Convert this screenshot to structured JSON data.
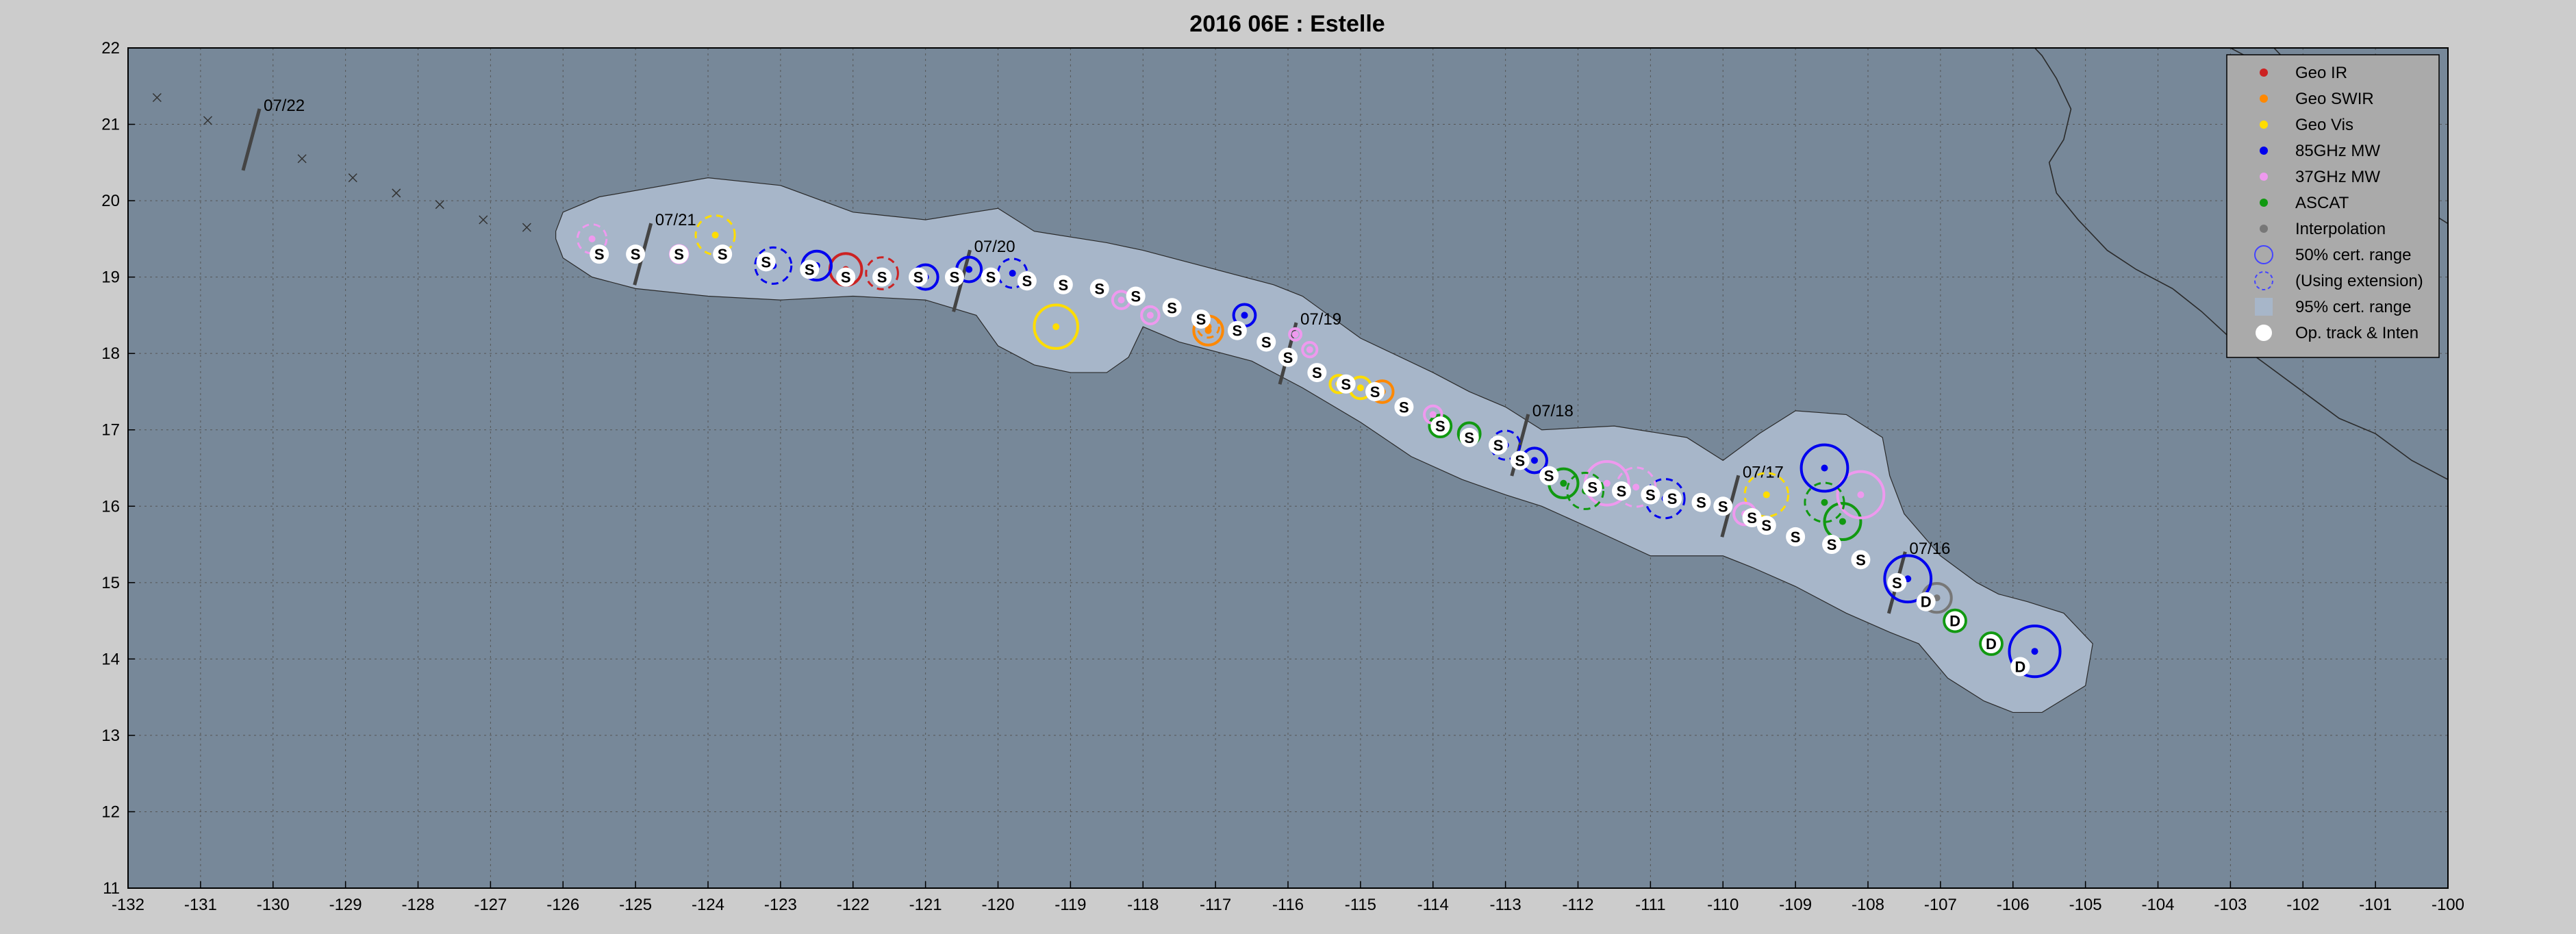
{
  "chart_data": {
    "type": "scatter",
    "title": "2016  06E :  Estelle",
    "xlim": [
      -132,
      -100
    ],
    "ylim": [
      11,
      22
    ],
    "xticks": [
      -132,
      -131,
      -130,
      -129,
      -128,
      -127,
      -126,
      -125,
      -124,
      -123,
      -122,
      -121,
      -120,
      -119,
      -118,
      -117,
      -116,
      -115,
      -114,
      -113,
      -112,
      -111,
      -110,
      -109,
      -108,
      -107,
      -106,
      -105,
      -104,
      -103,
      -102,
      -101,
      -100
    ],
    "yticks": [
      11,
      12,
      13,
      14,
      15,
      16,
      17,
      18,
      19,
      20,
      21,
      22
    ],
    "grid": true,
    "legend_position": "top-right",
    "colors": {
      "plot_bg": "#778899",
      "envelope": "#a7b6c9",
      "figure_bg": "#cccccc",
      "land_line": "#2a2a2a",
      "grid": "#555555"
    },
    "legend": [
      {
        "label": "Geo IR",
        "symbol": "dot",
        "color": "#cc2222"
      },
      {
        "label": "Geo SWIR",
        "symbol": "dot",
        "color": "#ff8800"
      },
      {
        "label": "Geo Vis",
        "symbol": "dot",
        "color": "#ffdd00"
      },
      {
        "label": "85GHz MW",
        "symbol": "dot",
        "color": "#0000ee"
      },
      {
        "label": "37GHz MW",
        "symbol": "dot",
        "color": "#ee99ee"
      },
      {
        "label": "ASCAT",
        "symbol": "dot",
        "color": "#119911"
      },
      {
        "label": "Interpolation",
        "symbol": "dot",
        "color": "#777777"
      },
      {
        "label": "50% cert. range",
        "symbol": "circle",
        "color": "#4444ff"
      },
      {
        "label": "(Using extension)",
        "symbol": "dashed-circle",
        "color": "#4444ff"
      },
      {
        "label": "95% cert. range",
        "symbol": "square",
        "color": "#a7b6c9"
      },
      {
        "label": "Op. track & Inten",
        "symbol": "white-dot",
        "color": "#ffffff"
      }
    ],
    "envelope_upper": [
      [
        -126.1,
        19.6
      ],
      [
        -126.0,
        19.85
      ],
      [
        -125.5,
        20.05
      ],
      [
        -124.0,
        20.3
      ],
      [
        -123.0,
        20.2
      ],
      [
        -122.0,
        19.85
      ],
      [
        -121.0,
        19.75
      ],
      [
        -120.0,
        19.9
      ],
      [
        -119.5,
        19.6
      ],
      [
        -118.5,
        19.45
      ],
      [
        -118.0,
        19.35
      ],
      [
        -117.0,
        19.1
      ],
      [
        -116.2,
        18.9
      ],
      [
        -115.8,
        18.75
      ],
      [
        -115.0,
        18.2
      ],
      [
        -114.0,
        17.75
      ],
      [
        -113.5,
        17.5
      ],
      [
        -113.0,
        17.3
      ],
      [
        -112.5,
        17.0
      ],
      [
        -111.5,
        17.05
      ],
      [
        -110.5,
        16.9
      ],
      [
        -110.0,
        16.6
      ],
      [
        -109.5,
        16.95
      ],
      [
        -109.0,
        17.25
      ],
      [
        -108.3,
        17.2
      ],
      [
        -107.8,
        16.9
      ],
      [
        -107.7,
        16.4
      ],
      [
        -107.5,
        15.9
      ],
      [
        -107.0,
        15.35
      ],
      [
        -106.5,
        15.0
      ],
      [
        -106.2,
        14.85
      ],
      [
        -105.8,
        14.75
      ],
      [
        -105.3,
        14.6
      ],
      [
        -104.9,
        14.2
      ]
    ],
    "envelope_lower": [
      [
        -105.0,
        13.65
      ],
      [
        -105.6,
        13.3
      ],
      [
        -106.0,
        13.3
      ],
      [
        -106.4,
        13.45
      ],
      [
        -106.9,
        13.75
      ],
      [
        -107.3,
        14.2
      ],
      [
        -107.7,
        14.35
      ],
      [
        -108.3,
        14.6
      ],
      [
        -109.0,
        14.95
      ],
      [
        -109.6,
        15.2
      ],
      [
        -110.0,
        15.35
      ],
      [
        -111.0,
        15.35
      ],
      [
        -111.8,
        15.7
      ],
      [
        -112.5,
        16.0
      ],
      [
        -113.0,
        16.15
      ],
      [
        -113.6,
        16.35
      ],
      [
        -114.3,
        16.65
      ],
      [
        -115.0,
        17.1
      ],
      [
        -115.8,
        17.55
      ],
      [
        -116.5,
        17.9
      ],
      [
        -117.5,
        18.15
      ],
      [
        -118.0,
        18.35
      ],
      [
        -118.2,
        17.95
      ],
      [
        -118.5,
        17.75
      ],
      [
        -119.0,
        17.75
      ],
      [
        -119.5,
        17.85
      ],
      [
        -120.0,
        18.1
      ],
      [
        -120.3,
        18.5
      ],
      [
        -121.0,
        18.7
      ],
      [
        -122.0,
        18.75
      ],
      [
        -123.0,
        18.7
      ],
      [
        -124.0,
        18.75
      ],
      [
        -125.0,
        18.85
      ],
      [
        -125.6,
        19.0
      ],
      [
        -126.0,
        19.25
      ],
      [
        -126.1,
        19.5
      ]
    ],
    "op_track": [
      {
        "lon": -105.9,
        "lat": 13.9,
        "label": "D"
      },
      {
        "lon": -106.3,
        "lat": 14.2,
        "label": "D"
      },
      {
        "lon": -106.8,
        "lat": 14.5,
        "label": "D"
      },
      {
        "lon": -107.2,
        "lat": 14.75,
        "label": "D"
      },
      {
        "lon": -107.6,
        "lat": 15.0,
        "label": "S"
      },
      {
        "lon": -108.1,
        "lat": 15.3,
        "label": "S"
      },
      {
        "lon": -108.5,
        "lat": 15.5,
        "label": "S"
      },
      {
        "lon": -109.0,
        "lat": 15.6,
        "label": "S"
      },
      {
        "lon": -109.4,
        "lat": 15.75,
        "label": "S"
      },
      {
        "lon": -109.6,
        "lat": 15.85,
        "label": "S"
      },
      {
        "lon": -110.0,
        "lat": 16.0,
        "label": "S"
      },
      {
        "lon": -110.3,
        "lat": 16.05,
        "label": "S"
      },
      {
        "lon": -110.7,
        "lat": 16.1,
        "label": "S"
      },
      {
        "lon": -111.0,
        "lat": 16.15,
        "label": "S"
      },
      {
        "lon": -111.4,
        "lat": 16.2,
        "label": "S"
      },
      {
        "lon": -111.8,
        "lat": 16.25,
        "label": "S"
      },
      {
        "lon": -112.4,
        "lat": 16.4,
        "label": "S"
      },
      {
        "lon": -112.8,
        "lat": 16.6,
        "label": "S"
      },
      {
        "lon": -113.1,
        "lat": 16.8,
        "label": "S"
      },
      {
        "lon": -113.5,
        "lat": 16.9,
        "label": "S"
      },
      {
        "lon": -113.9,
        "lat": 17.05,
        "label": "S"
      },
      {
        "lon": -114.4,
        "lat": 17.3,
        "label": "S"
      },
      {
        "lon": -114.8,
        "lat": 17.5,
        "label": "S"
      },
      {
        "lon": -115.2,
        "lat": 17.6,
        "label": "S"
      },
      {
        "lon": -115.6,
        "lat": 17.75,
        "label": "S"
      },
      {
        "lon": -116.0,
        "lat": 17.95,
        "label": "S"
      },
      {
        "lon": -116.3,
        "lat": 18.15,
        "label": "S"
      },
      {
        "lon": -116.7,
        "lat": 18.3,
        "label": "S"
      },
      {
        "lon": -117.2,
        "lat": 18.45,
        "label": "S"
      },
      {
        "lon": -117.6,
        "lat": 18.6,
        "label": "S"
      },
      {
        "lon": -118.1,
        "lat": 18.75,
        "label": "S"
      },
      {
        "lon": -118.6,
        "lat": 18.85,
        "label": "S"
      },
      {
        "lon": -119.1,
        "lat": 18.9,
        "label": "S"
      },
      {
        "lon": -119.6,
        "lat": 18.95,
        "label": "S"
      },
      {
        "lon": -120.1,
        "lat": 19.0,
        "label": "S"
      },
      {
        "lon": -120.6,
        "lat": 19.0,
        "label": "S"
      },
      {
        "lon": -121.1,
        "lat": 19.0,
        "label": "S"
      },
      {
        "lon": -121.6,
        "lat": 19.0,
        "label": "S"
      },
      {
        "lon": -122.1,
        "lat": 19.0,
        "label": "S"
      },
      {
        "lon": -122.6,
        "lat": 19.1,
        "label": "S"
      },
      {
        "lon": -123.2,
        "lat": 19.2,
        "label": "S"
      },
      {
        "lon": -123.8,
        "lat": 19.3,
        "label": "S"
      },
      {
        "lon": -124.4,
        "lat": 19.3,
        "label": "S"
      },
      {
        "lon": -125.0,
        "lat": 19.3,
        "label": "S"
      },
      {
        "lon": -125.5,
        "lat": 19.3,
        "label": "S"
      }
    ],
    "fixes": [
      {
        "lon": -105.7,
        "lat": 14.1,
        "type": "85GHz MW",
        "r": 0.35,
        "dashed": false
      },
      {
        "lon": -106.3,
        "lat": 14.2,
        "type": "ASCAT",
        "r": 0.15,
        "dashed": false
      },
      {
        "lon": -106.8,
        "lat": 14.5,
        "type": "ASCAT",
        "r": 0.15,
        "dashed": false
      },
      {
        "lon": -107.05,
        "lat": 14.8,
        "type": "Interpolation",
        "r": 0.2,
        "dashed": false
      },
      {
        "lon": -107.45,
        "lat": 15.05,
        "type": "85GHz MW",
        "r": 0.32,
        "dashed": false
      },
      {
        "lon": -108.35,
        "lat": 15.8,
        "type": "ASCAT",
        "r": 0.25,
        "dashed": false
      },
      {
        "lon": -108.1,
        "lat": 16.15,
        "type": "37GHz MW",
        "r": 0.32,
        "dashed": false
      },
      {
        "lon": -108.6,
        "lat": 16.05,
        "type": "ASCAT",
        "r": 0.27,
        "dashed": true
      },
      {
        "lon": -108.6,
        "lat": 16.5,
        "type": "85GHz MW",
        "r": 0.32,
        "dashed": false
      },
      {
        "lon": -109.4,
        "lat": 16.15,
        "type": "Geo Vis",
        "r": 0.3,
        "dashed": true
      },
      {
        "lon": -109.7,
        "lat": 15.9,
        "type": "37GHz MW",
        "r": 0.15,
        "dashed": false
      },
      {
        "lon": -110.8,
        "lat": 16.1,
        "type": "85GHz MW",
        "r": 0.27,
        "dashed": true
      },
      {
        "lon": -111.2,
        "lat": 16.25,
        "type": "37GHz MW",
        "r": 0.27,
        "dashed": true
      },
      {
        "lon": -111.6,
        "lat": 16.3,
        "type": "37GHz MW",
        "r": 0.3,
        "dashed": false
      },
      {
        "lon": -111.9,
        "lat": 16.2,
        "type": "ASCAT",
        "r": 0.25,
        "dashed": true
      },
      {
        "lon": -112.2,
        "lat": 16.3,
        "type": "ASCAT",
        "r": 0.2,
        "dashed": false
      },
      {
        "lon": -112.6,
        "lat": 16.6,
        "type": "85GHz MW",
        "r": 0.17,
        "dashed": false
      },
      {
        "lon": -113.0,
        "lat": 16.8,
        "type": "85GHz MW",
        "r": 0.2,
        "dashed": true
      },
      {
        "lon": -113.5,
        "lat": 16.95,
        "type": "ASCAT",
        "r": 0.15,
        "dashed": false
      },
      {
        "lon": -113.9,
        "lat": 17.05,
        "type": "ASCAT",
        "r": 0.15,
        "dashed": false
      },
      {
        "lon": -114.0,
        "lat": 17.2,
        "type": "37GHz MW",
        "r": 0.12,
        "dashed": false
      },
      {
        "lon": -114.7,
        "lat": 17.5,
        "type": "Geo SWIR",
        "r": 0.15,
        "dashed": false
      },
      {
        "lon": -115.0,
        "lat": 17.55,
        "type": "Geo Vis",
        "r": 0.15,
        "dashed": false
      },
      {
        "lon": -115.3,
        "lat": 17.6,
        "type": "Geo Vis",
        "r": 0.12,
        "dashed": false
      },
      {
        "lon": -115.7,
        "lat": 18.05,
        "type": "37GHz MW",
        "r": 0.1,
        "dashed": false
      },
      {
        "lon": -115.9,
        "lat": 18.25,
        "type": "37GHz MW",
        "r": 0.08,
        "dashed": false
      },
      {
        "lon": -116.6,
        "lat": 18.5,
        "type": "85GHz MW",
        "r": 0.15,
        "dashed": false
      },
      {
        "lon": -117.1,
        "lat": 18.3,
        "type": "Geo SWIR",
        "r": 0.2,
        "dashed": false
      },
      {
        "lon": -117.1,
        "lat": 18.35,
        "type": "Geo SWIR",
        "r": 0.15,
        "dashed": true
      },
      {
        "lon": -117.9,
        "lat": 18.5,
        "type": "37GHz MW",
        "r": 0.12,
        "dashed": false
      },
      {
        "lon": -118.3,
        "lat": 18.7,
        "type": "37GHz MW",
        "r": 0.12,
        "dashed": false
      },
      {
        "lon": -119.2,
        "lat": 18.35,
        "type": "Geo Vis",
        "r": 0.3,
        "dashed": false
      },
      {
        "lon": -119.8,
        "lat": 19.05,
        "type": "85GHz MW",
        "r": 0.2,
        "dashed": true
      },
      {
        "lon": -120.4,
        "lat": 19.1,
        "type": "85GHz MW",
        "r": 0.17,
        "dashed": false
      },
      {
        "lon": -121.0,
        "lat": 19.0,
        "type": "85GHz MW",
        "r": 0.17,
        "dashed": false
      },
      {
        "lon": -121.6,
        "lat": 19.05,
        "type": "Geo IR",
        "r": 0.22,
        "dashed": true
      },
      {
        "lon": -122.1,
        "lat": 19.1,
        "type": "Geo IR",
        "r": 0.22,
        "dashed": false
      },
      {
        "lon": -122.5,
        "lat": 19.15,
        "type": "85GHz MW",
        "r": 0.2,
        "dashed": false
      },
      {
        "lon": -123.1,
        "lat": 19.15,
        "type": "85GHz MW",
        "r": 0.25,
        "dashed": true
      },
      {
        "lon": -123.9,
        "lat": 19.55,
        "type": "Geo Vis",
        "r": 0.27,
        "dashed": true
      },
      {
        "lon": -124.4,
        "lat": 19.3,
        "type": "37GHz MW",
        "r": 0.12,
        "dashed": false
      },
      {
        "lon": -125.6,
        "lat": 19.5,
        "type": "37GHz MW",
        "r": 0.2,
        "dashed": true
      }
    ],
    "date_markers": [
      {
        "label": "07/16",
        "lon": -107.6,
        "lat": 15.0
      },
      {
        "label": "07/17",
        "lon": -109.9,
        "lat": 16.0
      },
      {
        "label": "07/18",
        "lon": -112.8,
        "lat": 16.8
      },
      {
        "label": "07/19",
        "lon": -116.0,
        "lat": 18.0
      },
      {
        "label": "07/20",
        "lon": -120.5,
        "lat": 18.95
      },
      {
        "label": "07/21",
        "lon": -124.9,
        "lat": 19.3
      },
      {
        "label": "07/22",
        "lon": -130.3,
        "lat": 20.8
      }
    ],
    "forecast_crosses": [
      {
        "lon": -131.6,
        "lat": 21.35
      },
      {
        "lon": -130.9,
        "lat": 21.05
      },
      {
        "lon": -129.6,
        "lat": 20.55
      },
      {
        "lon": -128.9,
        "lat": 20.3
      },
      {
        "lon": -128.3,
        "lat": 20.1
      },
      {
        "lon": -127.7,
        "lat": 19.95
      },
      {
        "lon": -127.1,
        "lat": 19.75
      },
      {
        "lon": -126.5,
        "lat": 19.65
      }
    ],
    "land_lines": [
      [
        [
          -100,
          16.35
        ],
        [
          -100.5,
          16.6
        ],
        [
          -101.0,
          16.95
        ],
        [
          -101.5,
          17.15
        ],
        [
          -102.0,
          17.5
        ],
        [
          -102.5,
          17.85
        ],
        [
          -103.0,
          18.2
        ],
        [
          -103.4,
          18.55
        ],
        [
          -103.8,
          18.85
        ],
        [
          -104.3,
          19.1
        ],
        [
          -104.7,
          19.35
        ],
        [
          -105.1,
          19.75
        ],
        [
          -105.4,
          20.1
        ],
        [
          -105.5,
          20.5
        ],
        [
          -105.3,
          20.8
        ],
        [
          -105.2,
          21.2
        ],
        [
          -105.4,
          21.6
        ],
        [
          -105.6,
          21.9
        ],
        [
          -105.7,
          22.0
        ]
      ],
      [
        [
          -100,
          19.7
        ],
        [
          -100.5,
          20.0
        ],
        [
          -101.0,
          20.35
        ],
        [
          -101.4,
          20.8
        ],
        [
          -101.6,
          21.1
        ],
        [
          -101.9,
          21.4
        ],
        [
          -102.2,
          21.8
        ],
        [
          -102.4,
          22.0
        ]
      ],
      [
        [
          -102.2,
          21.6
        ],
        [
          -102.6,
          21.8
        ],
        [
          -103.0,
          22.0
        ]
      ]
    ]
  }
}
